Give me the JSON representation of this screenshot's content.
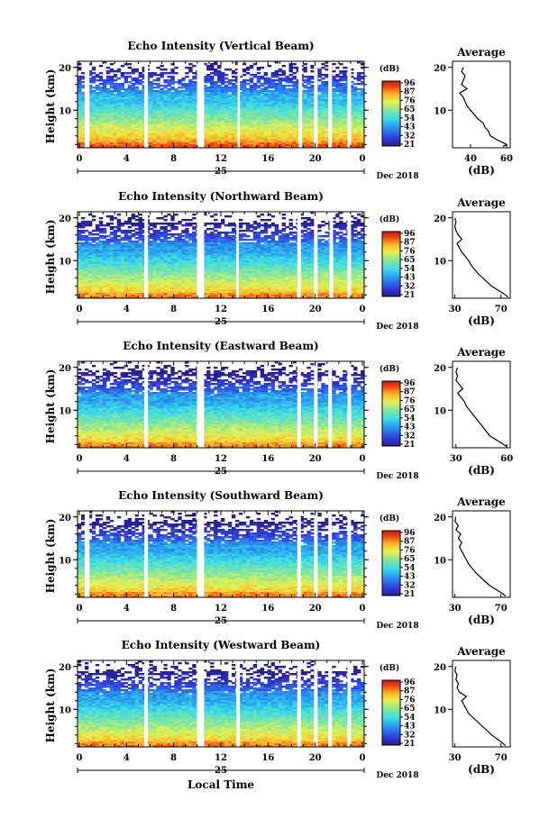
{
  "chart_data": [
    {
      "type": "heatmap",
      "title": "Echo Intensity (Vertical Beam)",
      "ylabel": "Height (km)",
      "yticks": [
        "20",
        "10"
      ],
      "xticks": [
        "0",
        "4",
        "8",
        "12",
        "16",
        "20",
        "0"
      ],
      "day_label": "25",
      "date_label": "Dec 2018",
      "colorbar": {
        "unit": "(dB)",
        "ticks": [
          "96",
          "87",
          "76",
          "65",
          "54",
          "43",
          "32",
          "21"
        ]
      },
      "gaps": [
        [
          0.6,
          1.0
        ],
        [
          5.6,
          5.9
        ],
        [
          10.0,
          10.6
        ],
        [
          13.4,
          13.6
        ],
        [
          18.5,
          18.8
        ],
        [
          19.8,
          20.1
        ],
        [
          21.0,
          21.3
        ],
        [
          22.6,
          22.9
        ]
      ],
      "profile": {
        "title": "Average",
        "xlabel": "(dB)",
        "xticks": [
          "40",
          "60"
        ],
        "xlim": [
          30,
          62
        ],
        "yticks": [
          "20",
          "10"
        ],
        "height_km": [
          1.5,
          2,
          3,
          4,
          5,
          6,
          7,
          8,
          9,
          10,
          11,
          12,
          13,
          14,
          15,
          16,
          17,
          18,
          19,
          20
        ],
        "intensity_db": [
          58,
          60,
          55,
          51,
          50,
          48,
          47,
          44,
          42,
          40,
          38,
          37,
          36,
          34,
          38,
          35,
          36,
          37,
          35,
          36
        ]
      }
    },
    {
      "type": "heatmap",
      "title": "Echo Intensity (Northward Beam)",
      "ylabel": "Height (km)",
      "yticks": [
        "20",
        "10"
      ],
      "xticks": [
        "0",
        "4",
        "8",
        "12",
        "16",
        "20",
        "0"
      ],
      "day_label": "25",
      "date_label": "Dec 2018",
      "colorbar": {
        "unit": "(dB)",
        "ticks": [
          "96",
          "87",
          "76",
          "65",
          "54",
          "43",
          "32",
          "21"
        ]
      },
      "gaps": [
        [
          5.6,
          5.9
        ],
        [
          10.0,
          10.6
        ],
        [
          13.3,
          13.5
        ],
        [
          18.4,
          18.7
        ],
        [
          19.8,
          20.1
        ],
        [
          21.1,
          21.4
        ],
        [
          22.6,
          22.9
        ]
      ],
      "profile": {
        "title": "Average",
        "xlabel": "(dB)",
        "xticks": [
          "30",
          "70"
        ],
        "xlim": [
          28,
          78
        ],
        "yticks": [
          "20",
          "10"
        ],
        "height_km": [
          1.5,
          2,
          3,
          4,
          5,
          6,
          7,
          8,
          9,
          10,
          11,
          12,
          13,
          14,
          15,
          16,
          17,
          18,
          19,
          20
        ],
        "intensity_db": [
          76,
          74,
          68,
          62,
          58,
          54,
          50,
          47,
          44,
          42,
          39,
          36,
          34,
          32,
          36,
          33,
          31,
          30,
          31,
          30
        ]
      }
    },
    {
      "type": "heatmap",
      "title": "Echo Intensity (Eastward Beam)",
      "ylabel": "Height (km)",
      "yticks": [
        "20",
        "10"
      ],
      "xticks": [
        "0",
        "4",
        "8",
        "12",
        "16",
        "20",
        "0"
      ],
      "day_label": "25",
      "date_label": "Dec 2018",
      "colorbar": {
        "unit": "(dB)",
        "ticks": [
          "96",
          "87",
          "76",
          "65",
          "54",
          "43",
          "32",
          "21"
        ]
      },
      "gaps": [
        [
          5.6,
          5.9
        ],
        [
          10.0,
          10.6
        ],
        [
          18.4,
          18.7
        ],
        [
          19.8,
          20.1
        ],
        [
          21.0,
          21.3
        ],
        [
          22.6,
          22.9
        ]
      ],
      "profile": {
        "title": "Average",
        "xlabel": "(dB)",
        "xticks": [
          "30",
          "60"
        ],
        "xlim": [
          28,
          62
        ],
        "yticks": [
          "20",
          "10"
        ],
        "height_km": [
          1.5,
          2,
          3,
          4,
          5,
          6,
          7,
          8,
          9,
          10,
          11,
          12,
          13,
          14,
          15,
          16,
          17,
          18,
          19,
          20
        ],
        "intensity_db": [
          60,
          58,
          54,
          50,
          48,
          46,
          44,
          42,
          40,
          38,
          36,
          35,
          33,
          31,
          34,
          32,
          30,
          31,
          30,
          31
        ]
      }
    },
    {
      "type": "heatmap",
      "title": "Echo Intensity (Southward Beam)",
      "ylabel": "Height (km)",
      "yticks": [
        "20",
        "10"
      ],
      "xticks": [
        "0",
        "4",
        "8",
        "12",
        "16",
        "20",
        "0"
      ],
      "day_label": "25",
      "date_label": "Dec 2018",
      "colorbar": {
        "unit": "(dB)",
        "ticks": [
          "96",
          "87",
          "76",
          "65",
          "54",
          "43",
          "32",
          "21"
        ]
      },
      "gaps": [
        [
          0.6,
          1.0
        ],
        [
          5.6,
          5.9
        ],
        [
          10.0,
          10.6
        ],
        [
          18.4,
          18.7
        ],
        [
          19.8,
          20.1
        ],
        [
          21.0,
          21.3
        ],
        [
          22.6,
          22.9
        ]
      ],
      "profile": {
        "title": "Average",
        "xlabel": "(dB)",
        "xticks": [
          "30",
          "70"
        ],
        "xlim": [
          28,
          78
        ],
        "yticks": [
          "20",
          "10"
        ],
        "height_km": [
          1.5,
          2,
          3,
          4,
          5,
          6,
          7,
          8,
          9,
          10,
          11,
          12,
          13,
          14,
          15,
          16,
          17,
          18,
          19,
          20
        ],
        "intensity_db": [
          74,
          72,
          66,
          60,
          56,
          52,
          48,
          45,
          42,
          40,
          38,
          36,
          34,
          36,
          33,
          35,
          31,
          33,
          30,
          31
        ]
      }
    },
    {
      "type": "heatmap",
      "title": "Echo Intensity (Westward Beam)",
      "ylabel": "Height (km)",
      "yticks": [
        "20",
        "10"
      ],
      "xticks": [
        "0",
        "4",
        "8",
        "12",
        "16",
        "20",
        "0"
      ],
      "day_label": "25",
      "date_label": "Dec 2018",
      "xlabel": "Local Time",
      "colorbar": {
        "unit": "(dB)",
        "ticks": [
          "96",
          "87",
          "76",
          "65",
          "54",
          "43",
          "32",
          "21"
        ]
      },
      "gaps": [
        [
          5.6,
          5.9
        ],
        [
          10.0,
          10.6
        ],
        [
          13.3,
          13.6
        ],
        [
          18.4,
          18.7
        ],
        [
          19.8,
          20.1
        ],
        [
          21.0,
          21.3
        ],
        [
          22.6,
          22.9
        ]
      ],
      "profile": {
        "title": "Average",
        "xlabel": "(dB)",
        "xticks": [
          "30",
          "70"
        ],
        "xlim": [
          28,
          78
        ],
        "yticks": [
          "20",
          "10"
        ],
        "height_km": [
          1.5,
          2,
          3,
          4,
          5,
          6,
          7,
          8,
          9,
          10,
          11,
          12,
          13,
          14,
          15,
          16,
          17,
          18,
          19,
          20
        ],
        "intensity_db": [
          74,
          72,
          67,
          62,
          58,
          54,
          50,
          46,
          42,
          40,
          38,
          36,
          40,
          34,
          32,
          33,
          31,
          32,
          30,
          31
        ]
      }
    }
  ]
}
